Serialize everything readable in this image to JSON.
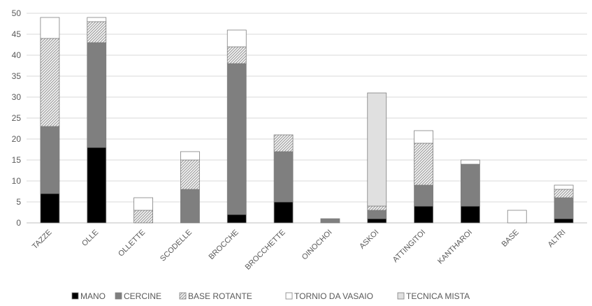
{
  "chart_data": {
    "type": "bar",
    "stacked": true,
    "categories": [
      "TAZZE",
      "OLLE",
      "OLLETTE",
      "SCODELLE",
      "BROCCHE",
      "BROCCHETTE",
      "OINOCHOI",
      "ASKOI",
      "ATTINGITOI",
      "KANTHAROI",
      "BASE",
      "ALTRI"
    ],
    "series": [
      {
        "name": "MANO",
        "values": [
          7,
          18,
          0,
          0,
          2,
          5,
          0,
          1,
          4,
          4,
          0,
          1
        ],
        "fill": "#000000",
        "pattern": "solid"
      },
      {
        "name": "CERCINE",
        "values": [
          16,
          25,
          0,
          8,
          36,
          12,
          1,
          2,
          5,
          10,
          0,
          5
        ],
        "fill": "#7f7f7f",
        "pattern": "solid"
      },
      {
        "name": "BASE ROTANTE",
        "values": [
          21,
          5,
          3,
          7,
          4,
          4,
          0,
          1,
          10,
          0,
          0,
          2
        ],
        "fill": "#d9d9d9",
        "pattern": "hatch"
      },
      {
        "name": "TORNIO DA VASAIO",
        "values": [
          5,
          1,
          3,
          2,
          4,
          0,
          0,
          0,
          3,
          1,
          3,
          1
        ],
        "fill": "#ffffff",
        "pattern": "solid"
      },
      {
        "name": "TECNICA MISTA",
        "values": [
          0,
          0,
          0,
          0,
          0,
          0,
          0,
          27,
          0,
          0,
          0,
          0
        ],
        "fill": "#e0e0e0",
        "pattern": "solid"
      }
    ],
    "y_ticks": [
      "0",
      "5",
      "10",
      "15",
      "20",
      "25",
      "30",
      "35",
      "40",
      "45",
      "50"
    ],
    "ylim": [
      0,
      50
    ],
    "grid": true,
    "legend_position": "bottom",
    "colors": {
      "gridline": "#d9d9d9",
      "axis": "#bfbfbf",
      "text": "#595959",
      "outline": "#7f7f7f"
    }
  }
}
